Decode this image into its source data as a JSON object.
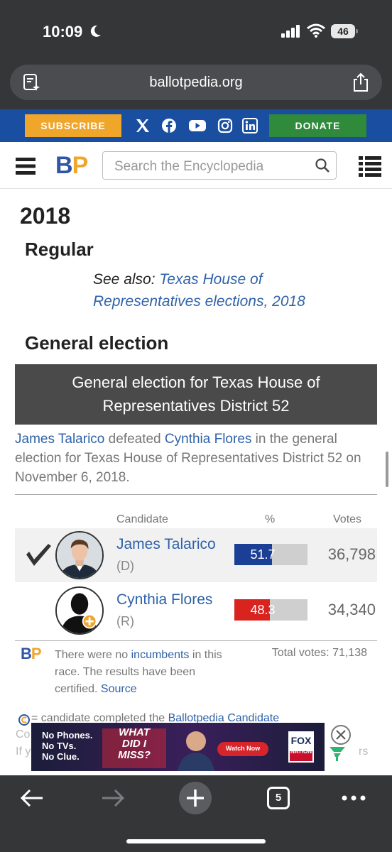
{
  "status": {
    "time": "10:09",
    "battery": "46"
  },
  "browser": {
    "url": "ballotpedia.org",
    "tab_count": "5"
  },
  "top_band": {
    "subscribe_label": "SUBSCRIBE",
    "donate_label": "DONATE",
    "social_icons": [
      "x-icon",
      "facebook-icon",
      "youtube-icon",
      "instagram-icon",
      "linkedin-icon"
    ],
    "color": "#1a4ea0"
  },
  "header": {
    "logo_b": "B",
    "logo_p": "P",
    "search_placeholder": "Search the Encyclopedia"
  },
  "article": {
    "year_heading": "2018",
    "regular_heading": "Regular",
    "see_also_prefix": "See also: ",
    "see_also_link": "Texas House of Representatives elections, 2018",
    "general_heading": "General election",
    "table_title": "General election for Texas House of Representatives District 52",
    "summary": {
      "winner": "James Talarico",
      "verb": " defeated ",
      "loser": "Cynthia Flores",
      "rest": " in the general election for Texas House of Representatives District 52 on November 6, 2018."
    },
    "columns": {
      "candidate": "Candidate",
      "percent": "%",
      "votes": "Votes"
    },
    "candidates": [
      {
        "name": "James Talarico",
        "party": "(D)",
        "percent": "51.7",
        "percent_value": 51.7,
        "votes": "36,798",
        "winner": true,
        "color": "#1a3f94"
      },
      {
        "name": "Cynthia Flores",
        "party": "(R)",
        "percent": "48.3",
        "percent_value": 48.3,
        "votes": "34,340",
        "winner": false,
        "color": "#d9231f"
      }
    ],
    "note": {
      "part1": "There were no ",
      "link1": "incumbents",
      "part2": " in this race. The results have been certified. ",
      "link2": "Source"
    },
    "total_votes": "Total votes: 71,138",
    "cc_note_prefix": "= candidate completed the ",
    "cc_note_link": "Ballotpedia Candidate",
    "faded_1": "Co",
    "faded_2": "If y",
    "faded_3": "rs"
  },
  "ad": {
    "line1": "No Phones.",
    "line2": "No TVs.",
    "line3": "No Clue.",
    "show_top": "WHAT",
    "show_mid": "DID I",
    "show_bot": "MISS?",
    "watch_now": "Watch Now",
    "brand_top": "FOX",
    "brand_bot": "NATION"
  }
}
